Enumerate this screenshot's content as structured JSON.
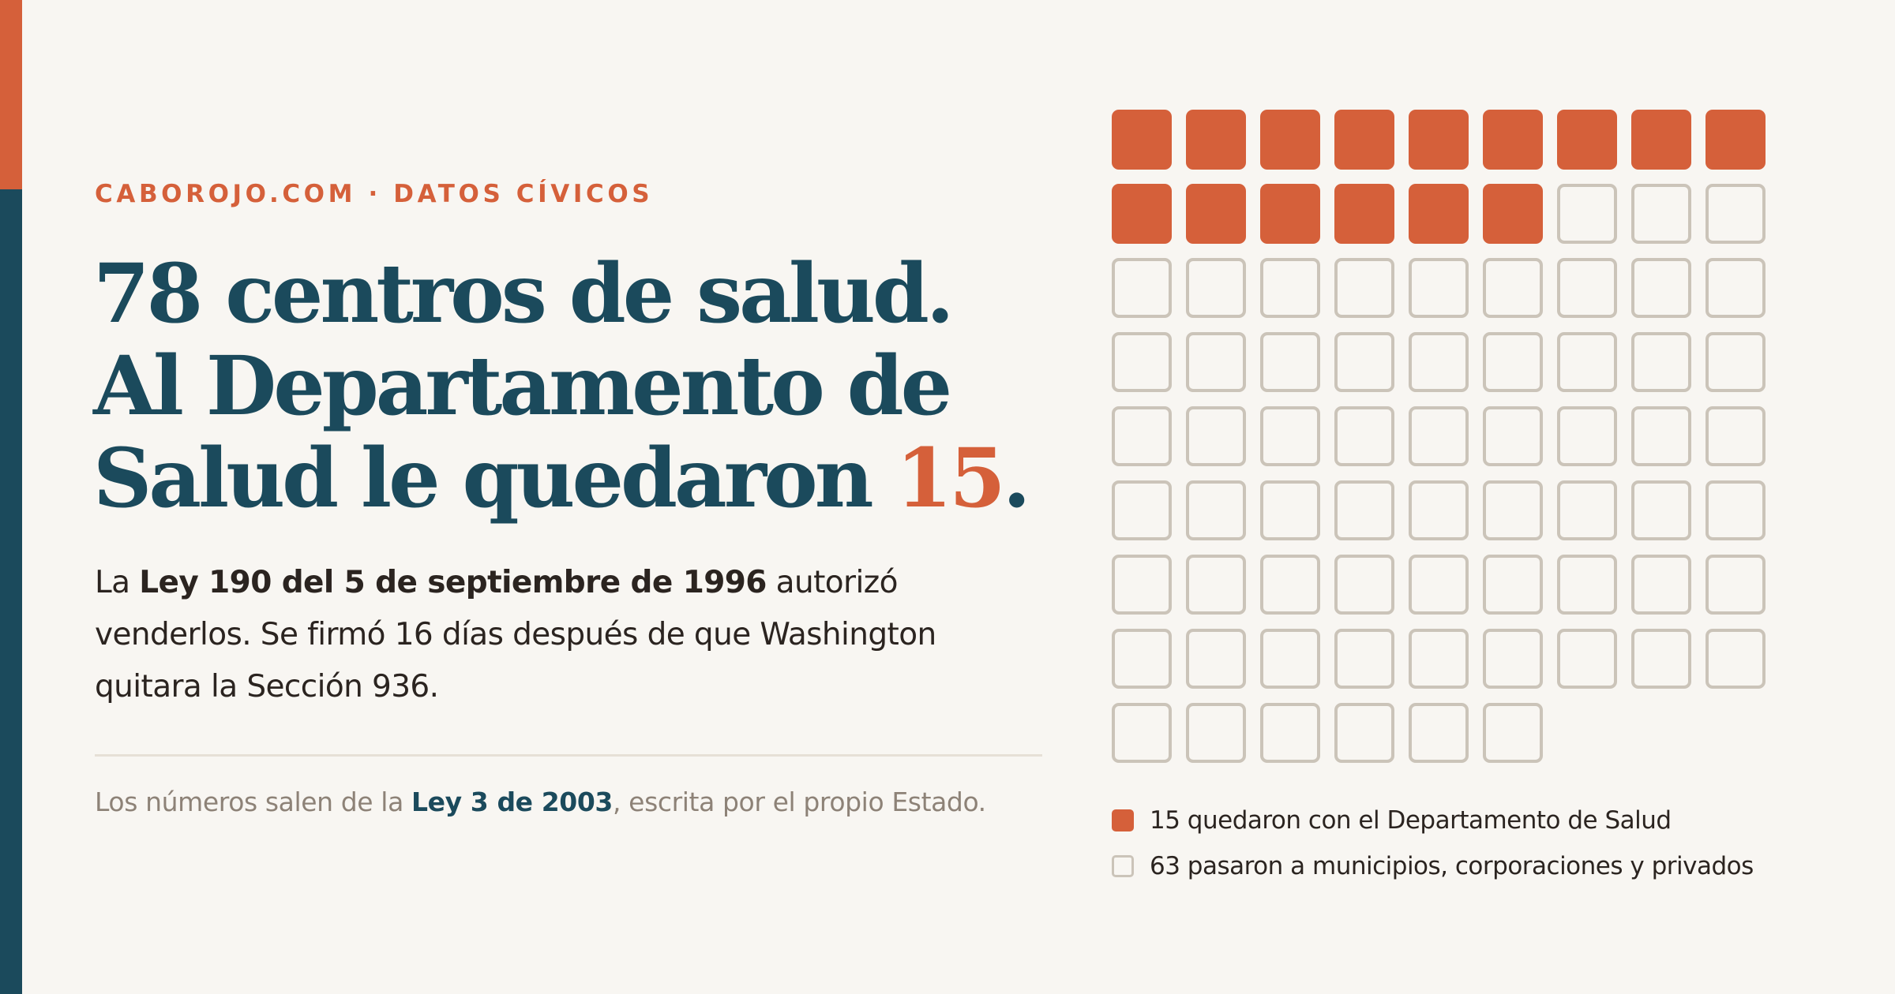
{
  "kicker": "CABOROJO.COM · DATOS CÍVICOS",
  "headline": {
    "line1": "78 centros de salud.",
    "line2": "Al Departamento de",
    "line3_prefix": "Salud le quedaron ",
    "line3_number": "15",
    "line3_suffix": "."
  },
  "body": {
    "part1": "La ",
    "bold": "Ley 190 del 5 de septiembre de 1996",
    "part2": " autorizó venderlos. Se firmó 16 días después de que Washington quitara la Sección 936."
  },
  "source": {
    "part1": "Los números salen de la ",
    "bold": "Ley 3 de 2003",
    "part2": ", escrita por el propio Estado."
  },
  "waffle": {
    "total": 78,
    "kept": 15,
    "transferred": 63,
    "columns": 9,
    "kept_color": "#d5603a",
    "transferred_color": "#cbc4b9"
  },
  "legend": {
    "kept_label": "15 quedaron con el Departamento de Salud",
    "transferred_label": "63 pasaron a municipios, corporaciones y privados"
  },
  "colors": {
    "accent": "#d5603a",
    "navy": "#1b4a5c",
    "background": "#f8f6f2"
  }
}
